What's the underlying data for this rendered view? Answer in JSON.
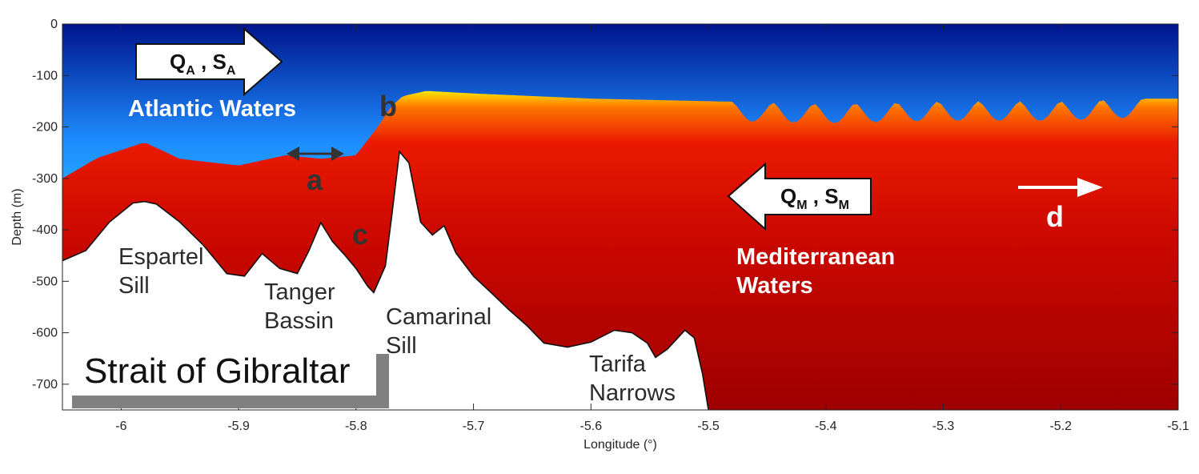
{
  "chart_data": {
    "type": "heatmap",
    "title": "",
    "xlabel": "Longitude (°)",
    "ylabel": "Depth (m)",
    "xlim": [
      -6.05,
      -5.1
    ],
    "ylim": [
      -750,
      0
    ],
    "x_ticks": [
      -6,
      -5.9,
      -5.8,
      -5.7,
      -5.6,
      -5.5,
      -5.4,
      -5.3,
      -5.2,
      -5.1
    ],
    "y_ticks": [
      0,
      -100,
      -200,
      -300,
      -400,
      -500,
      -600,
      -700
    ],
    "x_tick_labels": [
      "-6",
      "-5.9",
      "-5.8",
      "-5.7",
      "-5.6",
      "-5.5",
      "-5.4",
      "-5.3",
      "-5.2",
      "-5.1"
    ],
    "y_tick_labels": [
      "0",
      "-100",
      "-200",
      "-300",
      "-400",
      "-500",
      "-600",
      "-700"
    ],
    "colormap": "jet",
    "colors": {
      "atlantic_deep": "#00148c",
      "atlantic_mid": "#1e8cff",
      "atlantic_light": "#28dcff",
      "interface_yellow": "#ffe600",
      "interface_orange": "#ff7800",
      "mediterranean": "#dc0a00",
      "mediterranean_deep": "#9e0000",
      "bathymetry": "#ffffff",
      "annotation_dark": "#333333",
      "arrow_white": "#ffffff"
    },
    "bathymetry_profile": {
      "lon": [
        -6.05,
        -6.03,
        -6.01,
        -5.99,
        -5.98,
        -5.97,
        -5.95,
        -5.93,
        -5.91,
        -5.895,
        -5.88,
        -5.865,
        -5.85,
        -5.84,
        -5.83,
        -5.82,
        -5.81,
        -5.8,
        -5.79,
        -5.785,
        -5.775,
        -5.77,
        -5.763,
        -5.755,
        -5.745,
        -5.735,
        -5.725,
        -5.715,
        -5.7,
        -5.685,
        -5.67,
        -5.655,
        -5.64,
        -5.62,
        -5.6,
        -5.58,
        -5.565,
        -5.552,
        -5.545,
        -5.535,
        -5.52,
        -5.512,
        -5.505,
        -5.5
      ],
      "depth": [
        -460,
        -440,
        -385,
        -348,
        -345,
        -350,
        -385,
        -430,
        -485,
        -490,
        -446,
        -475,
        -485,
        -440,
        -386,
        -423,
        -448,
        -475,
        -510,
        -522,
        -470,
        -380,
        -248,
        -270,
        -385,
        -410,
        -392,
        -445,
        -490,
        -522,
        -555,
        -585,
        -620,
        -628,
        -618,
        -595,
        -600,
        -620,
        -648,
        -632,
        -595,
        -610,
        -680,
        -750
      ]
    },
    "interface_depth": {
      "lon": [
        -6.05,
        -6.02,
        -5.98,
        -5.95,
        -5.9,
        -5.86,
        -5.83,
        -5.8,
        -5.78,
        -5.77,
        -5.76,
        -5.74,
        -5.7,
        -5.6,
        -5.5,
        -5.4,
        -5.3,
        -5.2,
        -5.15,
        -5.1
      ],
      "depth": [
        -300,
        -260,
        -230,
        -262,
        -275,
        -255,
        -262,
        -255,
        -195,
        -160,
        -140,
        -130,
        -135,
        -145,
        -150,
        -155,
        -150,
        -150,
        -145,
        -145
      ]
    },
    "annotations": {
      "atlantic_flux": {
        "main": "Q",
        "sub1": "A",
        "mid": " , S",
        "sub2": "A"
      },
      "mediterranean_flux": {
        "main": "Q",
        "sub1": "M",
        "mid": " , S",
        "sub2": "M"
      },
      "atlantic_label": "Atlantic Waters",
      "mediterranean_label_1": "Mediterranean",
      "mediterranean_label_2": "Waters",
      "letter_a": "a",
      "letter_b": "b",
      "letter_c": "c",
      "letter_d": "d",
      "espartel_1": "Espartel",
      "espartel_2": "Sill",
      "tanger_1": "Tanger",
      "tanger_2": "Bassin",
      "camarinal_1": "Camarinal",
      "camarinal_2": "Sill",
      "tarifa_1": "Tarifa",
      "tarifa_2": "Narrows",
      "strait": "Strait of Gibraltar"
    }
  }
}
